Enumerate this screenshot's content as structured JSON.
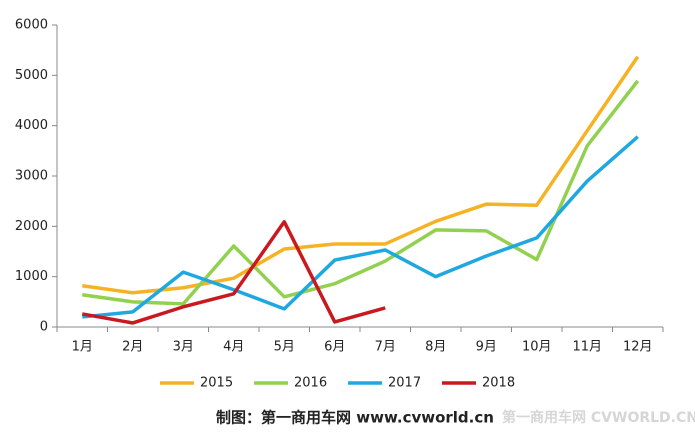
{
  "chart_data": {
    "type": "line",
    "categories": [
      "1月",
      "2月",
      "3月",
      "4月",
      "5月",
      "6月",
      "7月",
      "8月",
      "9月",
      "10月",
      "11月",
      "12月"
    ],
    "series": [
      {
        "name": "2015",
        "color": "#f5b324",
        "values": [
          820,
          680,
          780,
          970,
          1550,
          1650,
          1650,
          2100,
          2440,
          2420,
          3900,
          5370
        ]
      },
      {
        "name": "2016",
        "color": "#92d050",
        "values": [
          640,
          500,
          460,
          1610,
          600,
          860,
          1310,
          1930,
          1910,
          1340,
          3600,
          4890
        ]
      },
      {
        "name": "2017",
        "color": "#1fa8e0",
        "values": [
          200,
          300,
          1090,
          740,
          360,
          1330,
          1530,
          1000,
          1410,
          1770,
          2900,
          3780
        ]
      },
      {
        "name": "2018",
        "color": "#c9191e",
        "values": [
          260,
          80,
          400,
          660,
          2090,
          100,
          380,
          null,
          null,
          null,
          null,
          null
        ]
      }
    ],
    "ylim": [
      0,
      6000
    ],
    "yticks": [
      0,
      1000,
      2000,
      3000,
      4000,
      5000,
      6000
    ],
    "legend": "bottom",
    "footer": "制图：第一商用车网 www.cvworld.cn",
    "watermark": "第一商用车网 CVWORLD.CN"
  }
}
